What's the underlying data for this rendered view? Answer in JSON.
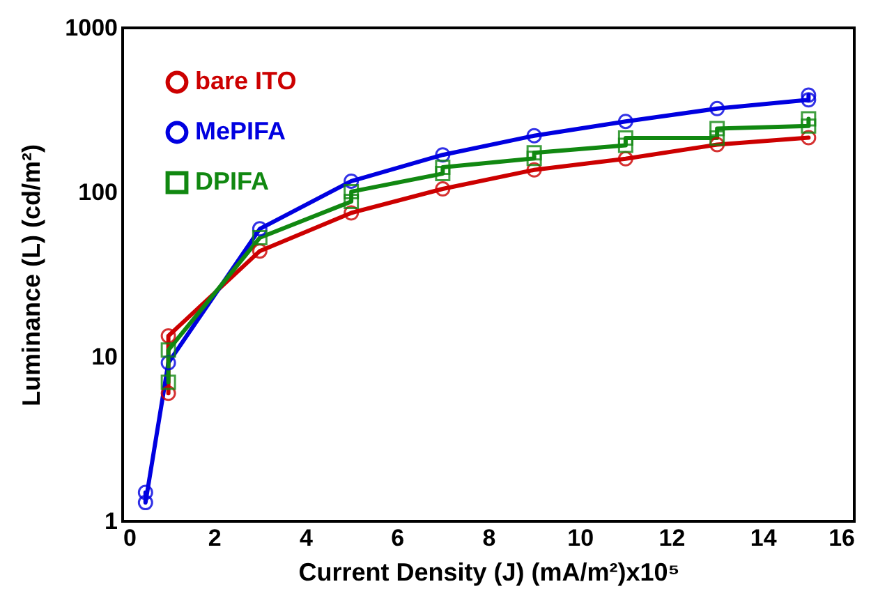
{
  "chart_data": {
    "type": "line",
    "xlabel": "Current Density (J) (mA/m²)x10⁵",
    "ylabel": "Luminance (L) (cd/m²)",
    "log": "y",
    "xlim": [
      0,
      16
    ],
    "xticks": [
      0,
      2,
      4,
      6,
      8,
      10,
      12,
      14,
      16
    ],
    "ylim": [
      1,
      1000
    ],
    "yticks": [
      1,
      10,
      100,
      1000
    ],
    "grid": false,
    "legend": "top left",
    "line_style": "solid",
    "series": [
      {
        "name": "bare ITO",
        "color": "#cc0000",
        "marker": "circle",
        "x": [
          1,
          1,
          3,
          5,
          7,
          9,
          11,
          13,
          15
        ],
        "values": [
          6,
          13.4,
          44,
          75,
          105,
          137,
          160,
          195,
          215
        ]
      },
      {
        "name": "MePIFA",
        "color": "#0000e0",
        "marker": "circle",
        "x": [
          0.5,
          0.5,
          1,
          3,
          5,
          7,
          9,
          11,
          13,
          15,
          15
        ],
        "values": [
          1.5,
          1.3,
          9.2,
          60,
          117,
          169,
          221,
          270,
          323,
          365,
          390
        ]
      },
      {
        "name": "DPIFA",
        "color": "#118811",
        "marker": "square",
        "x": [
          1,
          1,
          3,
          5,
          5,
          7,
          7,
          9,
          9,
          11,
          11,
          13,
          13,
          15,
          15
        ],
        "values": [
          7,
          11,
          53,
          88,
          101,
          130,
          142,
          161,
          174,
          193,
          214,
          214,
          244,
          253,
          280
        ]
      }
    ]
  }
}
